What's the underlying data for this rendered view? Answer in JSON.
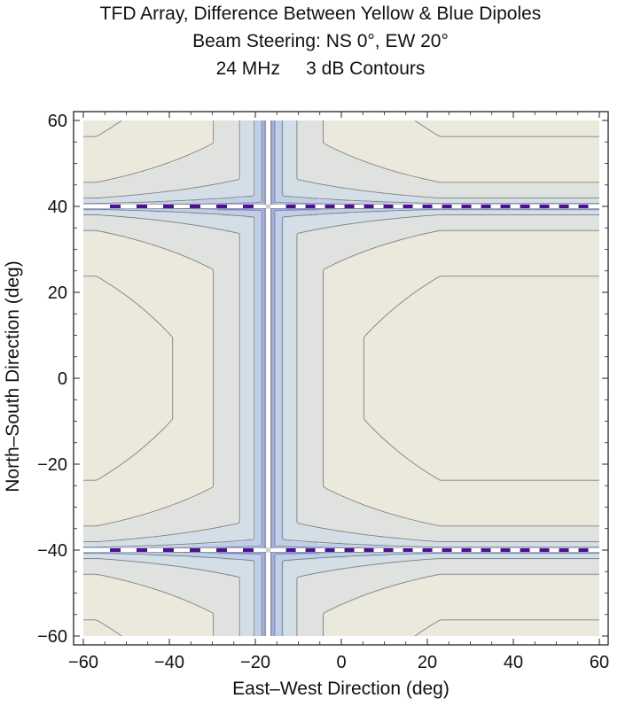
{
  "title": {
    "line1": "TFD Array, Difference Between Yellow & Blue Dipoles",
    "line2": "Beam Steering: NS 0°, EW 20°",
    "line3a": "24 MHz",
    "line3b": "3 dB Contours"
  },
  "chart_data": {
    "type": "contour",
    "title": "TFD Array, Difference Between Yellow & Blue Dipoles",
    "subtitle": "Beam Steering: NS 0°, EW 20° — 24 MHz, 3 dB Contours",
    "xlabel": "East–West Direction (deg)",
    "ylabel": "North–South Direction (deg)",
    "xlim": [
      -60,
      60
    ],
    "ylim": [
      -60,
      60
    ],
    "xticks": [
      -60,
      -40,
      -20,
      0,
      20,
      40,
      60
    ],
    "yticks": [
      -60,
      -40,
      -20,
      0,
      20,
      40,
      60
    ],
    "xtick_labels": [
      "−60",
      "−40",
      "−20",
      "0",
      "20",
      "40",
      "60"
    ],
    "ytick_labels": [
      "−60",
      "−40",
      "−20",
      "0",
      "20",
      "40",
      "60"
    ],
    "contour_interval_db": 3,
    "null_lines": {
      "vertical_x": -17,
      "horizontal_y": [
        40,
        -40
      ]
    },
    "focal_points": [
      {
        "x": -17,
        "y": 40
      },
      {
        "x": -17,
        "y": -40
      }
    ],
    "colors": {
      "high": "#ebe8dc",
      "mid_high": "#e0e2df",
      "mid": "#d3dee7",
      "mid_low": "#bfcfe8",
      "low": "#a7aee6",
      "lower": "#8d8fdc",
      "null": "#4b1191",
      "contour_line": "#808080"
    }
  }
}
